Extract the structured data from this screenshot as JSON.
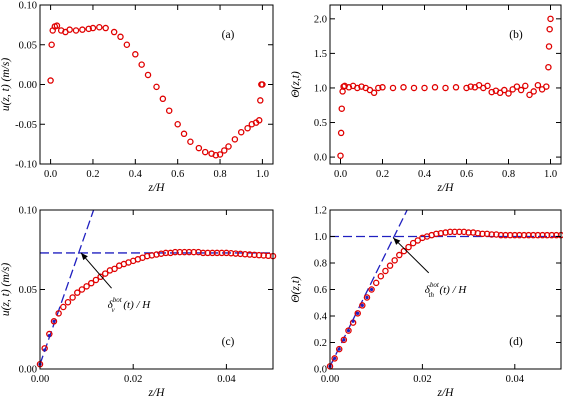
{
  "chart_data": [
    {
      "id": "a",
      "type": "scatter",
      "panel_label": "(a)",
      "xlabel": "z/H",
      "ylabel": "u(z, t) (m/s)",
      "xlim": [
        -0.05,
        1.05
      ],
      "ylim": [
        -0.1,
        0.1
      ],
      "xticks": [
        0.0,
        0.2,
        0.4,
        0.6,
        0.8,
        1.0
      ],
      "xtick_labels": [
        "0.0",
        "0.2",
        "0.4",
        "0.6",
        "0.8",
        "1.0"
      ],
      "yticks": [
        -0.1,
        -0.05,
        0.0,
        0.05,
        0.1
      ],
      "ytick_labels": [
        "-0.10",
        "-0.05",
        "0.00",
        "0.05",
        "0.10"
      ],
      "series": [
        {
          "color": "#e00000",
          "marker": "open-circle",
          "x": [
            0.0,
            0.005,
            0.01,
            0.02,
            0.03,
            0.05,
            0.07,
            0.09,
            0.12,
            0.15,
            0.18,
            0.2,
            0.23,
            0.26,
            0.3,
            0.33,
            0.36,
            0.4,
            0.43,
            0.46,
            0.5,
            0.53,
            0.56,
            0.6,
            0.63,
            0.66,
            0.7,
            0.73,
            0.76,
            0.78,
            0.8,
            0.82,
            0.84,
            0.87,
            0.9,
            0.93,
            0.95,
            0.97,
            0.985,
            0.99,
            0.995,
            1.0
          ],
          "y": [
            0.005,
            0.05,
            0.068,
            0.073,
            0.074,
            0.068,
            0.066,
            0.069,
            0.068,
            0.069,
            0.07,
            0.071,
            0.072,
            0.071,
            0.066,
            0.06,
            0.05,
            0.038,
            0.025,
            0.012,
            -0.003,
            -0.018,
            -0.033,
            -0.05,
            -0.062,
            -0.072,
            -0.08,
            -0.085,
            -0.087,
            -0.089,
            -0.088,
            -0.083,
            -0.078,
            -0.069,
            -0.06,
            -0.055,
            -0.05,
            -0.048,
            -0.045,
            -0.02,
            0.0,
            0.0
          ]
        }
      ]
    },
    {
      "id": "b",
      "type": "scatter",
      "panel_label": "(b)",
      "xlabel": "z/H",
      "ylabel": "Θ(z,t)",
      "xlim": [
        -0.05,
        1.05
      ],
      "ylim": [
        -0.1,
        2.2
      ],
      "xticks": [
        0.0,
        0.2,
        0.4,
        0.6,
        0.8,
        1.0
      ],
      "xtick_labels": [
        "0.0",
        "0.2",
        "0.4",
        "0.6",
        "0.8",
        "1.0"
      ],
      "yticks": [
        0.0,
        0.5,
        1.0,
        1.5,
        2.0
      ],
      "ytick_labels": [
        "0.0",
        "0.5",
        "1.0",
        "1.5",
        "2.0"
      ],
      "series": [
        {
          "color": "#e00000",
          "marker": "open-circle",
          "x": [
            0.0,
            0.003,
            0.006,
            0.01,
            0.015,
            0.02,
            0.04,
            0.06,
            0.08,
            0.1,
            0.12,
            0.14,
            0.16,
            0.18,
            0.2,
            0.25,
            0.3,
            0.35,
            0.4,
            0.45,
            0.5,
            0.55,
            0.6,
            0.62,
            0.64,
            0.66,
            0.68,
            0.7,
            0.72,
            0.74,
            0.76,
            0.78,
            0.8,
            0.82,
            0.84,
            0.86,
            0.88,
            0.9,
            0.92,
            0.94,
            0.96,
            0.98,
            0.99,
            0.993,
            0.996,
            1.0
          ],
          "y": [
            0.02,
            0.35,
            0.7,
            0.95,
            1.02,
            1.03,
            1.01,
            1.03,
            1.0,
            1.02,
            1.0,
            0.97,
            0.93,
            1.0,
            1.01,
            1.0,
            1.01,
            1.0,
            1.0,
            1.01,
            1.0,
            1.01,
            1.0,
            1.02,
            1.01,
            1.04,
            1.0,
            1.03,
            0.94,
            0.96,
            0.93,
            0.97,
            0.92,
            0.98,
            1.02,
            0.97,
            1.03,
            0.9,
            0.95,
            1.04,
            0.98,
            1.02,
            1.3,
            1.6,
            1.85,
            2.0
          ]
        }
      ]
    },
    {
      "id": "c",
      "type": "scatter",
      "panel_label": "(c)",
      "xlabel": "z/H",
      "ylabel": "u(z, t) (m/s)",
      "xlim": [
        0.0,
        0.05
      ],
      "ylim": [
        0.0,
        0.1
      ],
      "xticks": [
        0.0,
        0.02,
        0.04
      ],
      "xtick_labels": [
        "0.00",
        "0.02",
        "0.04"
      ],
      "yticks": [
        0.0,
        0.05,
        0.1
      ],
      "ytick_labels": [
        "0.00",
        "0.05",
        "0.10"
      ],
      "series": [
        {
          "color": "#e00000",
          "marker": "open-circle",
          "x": [
            0.0,
            0.001,
            0.002,
            0.003,
            0.004,
            0.005,
            0.006,
            0.007,
            0.008,
            0.009,
            0.01,
            0.011,
            0.012,
            0.013,
            0.014,
            0.015,
            0.016,
            0.017,
            0.018,
            0.019,
            0.02,
            0.021,
            0.022,
            0.023,
            0.024,
            0.025,
            0.026,
            0.027,
            0.028,
            0.029,
            0.03,
            0.031,
            0.032,
            0.033,
            0.034,
            0.035,
            0.036,
            0.037,
            0.038,
            0.039,
            0.04,
            0.041,
            0.042,
            0.043,
            0.044,
            0.045,
            0.046,
            0.047,
            0.048,
            0.049,
            0.05
          ],
          "y": [
            0.003,
            0.013,
            0.022,
            0.03,
            0.035,
            0.039,
            0.042,
            0.045,
            0.048,
            0.05,
            0.052,
            0.054,
            0.056,
            0.058,
            0.06,
            0.062,
            0.063,
            0.065,
            0.066,
            0.067,
            0.068,
            0.069,
            0.07,
            0.071,
            0.0715,
            0.072,
            0.0725,
            0.073,
            0.073,
            0.0735,
            0.0735,
            0.0735,
            0.0735,
            0.0735,
            0.0735,
            0.073,
            0.073,
            0.073,
            0.073,
            0.073,
            0.073,
            0.0728,
            0.0726,
            0.0724,
            0.0722,
            0.072,
            0.0718,
            0.0716,
            0.0714,
            0.0712,
            0.071
          ]
        },
        {
          "color": "#2020c0",
          "marker": "dot",
          "x": [
            0.0,
            0.001,
            0.002,
            0.003
          ],
          "y": [
            0.003,
            0.012,
            0.021,
            0.03
          ]
        }
      ],
      "reference_lines": [
        {
          "color": "#2020c0",
          "style": "dashed",
          "kind": "tangent",
          "points": [
            [
              0.0,
              0.003
            ],
            [
              0.0115,
              0.1
            ]
          ]
        },
        {
          "color": "#2020c0",
          "style": "dashed",
          "kind": "horizontal",
          "points": [
            [
              0.0,
              0.073
            ],
            [
              0.05,
              0.073
            ]
          ]
        }
      ],
      "annotation": {
        "text_main": "δ",
        "superscript": "bot",
        "subscript": "v",
        "text_after": "(t) / H",
        "arrow_to": [
          0.0088,
          0.073
        ],
        "text_at": [
          0.0145,
          0.042
        ]
      }
    },
    {
      "id": "d",
      "type": "scatter",
      "panel_label": "(d)",
      "xlabel": "z/H",
      "ylabel": "Θ(z,t)",
      "xlim": [
        0.0,
        0.05
      ],
      "ylim": [
        0.0,
        1.2
      ],
      "xticks": [
        0.0,
        0.02,
        0.04
      ],
      "xtick_labels": [
        "0.00",
        "0.02",
        "0.04"
      ],
      "yticks": [
        0.0,
        0.2,
        0.4,
        0.6,
        0.8,
        1.0,
        1.2
      ],
      "ytick_labels": [
        "0.0",
        "0.2",
        "0.4",
        "0.6",
        "0.8",
        "1.0",
        "1.2"
      ],
      "series": [
        {
          "color": "#e00000",
          "marker": "open-circle",
          "x": [
            0.0,
            0.001,
            0.002,
            0.003,
            0.004,
            0.005,
            0.006,
            0.007,
            0.008,
            0.009,
            0.01,
            0.011,
            0.012,
            0.013,
            0.014,
            0.015,
            0.016,
            0.017,
            0.018,
            0.019,
            0.02,
            0.021,
            0.022,
            0.023,
            0.024,
            0.025,
            0.026,
            0.027,
            0.028,
            0.029,
            0.03,
            0.031,
            0.032,
            0.033,
            0.034,
            0.035,
            0.036,
            0.037,
            0.038,
            0.039,
            0.04,
            0.041,
            0.042,
            0.043,
            0.044,
            0.045,
            0.046,
            0.047,
            0.048,
            0.049,
            0.05
          ],
          "y": [
            0.02,
            0.08,
            0.15,
            0.22,
            0.29,
            0.35,
            0.42,
            0.48,
            0.54,
            0.6,
            0.65,
            0.7,
            0.74,
            0.78,
            0.82,
            0.86,
            0.89,
            0.92,
            0.95,
            0.97,
            0.99,
            1.0,
            1.01,
            1.02,
            1.025,
            1.03,
            1.035,
            1.035,
            1.035,
            1.035,
            1.03,
            1.03,
            1.025,
            1.02,
            1.02,
            1.015,
            1.015,
            1.01,
            1.01,
            1.01,
            1.01,
            1.01,
            1.01,
            1.01,
            1.01,
            1.01,
            1.01,
            1.01,
            1.01,
            1.01,
            1.01
          ]
        },
        {
          "color": "#2020c0",
          "marker": "dot",
          "x": [
            0.0,
            0.001,
            0.002,
            0.003,
            0.004,
            0.005,
            0.006,
            0.007,
            0.008,
            0.009
          ],
          "y": [
            0.02,
            0.08,
            0.15,
            0.22,
            0.29,
            0.36,
            0.42,
            0.48,
            0.54,
            0.6
          ]
        }
      ],
      "reference_lines": [
        {
          "color": "#2020c0",
          "style": "dashed",
          "kind": "tangent",
          "points": [
            [
              0.0,
              0.02
            ],
            [
              0.0167,
              1.2
            ]
          ]
        },
        {
          "color": "#2020c0",
          "style": "dashed",
          "kind": "horizontal",
          "points": [
            [
              0.0,
              1.0
            ],
            [
              0.05,
              1.0
            ]
          ]
        }
      ],
      "annotation": {
        "text_main": "δ",
        "superscript": "bot",
        "subscript": "th",
        "text_after": "(t) / H",
        "arrow_to": [
          0.0137,
          0.99
        ],
        "text_at": [
          0.0205,
          0.62
        ]
      }
    }
  ]
}
